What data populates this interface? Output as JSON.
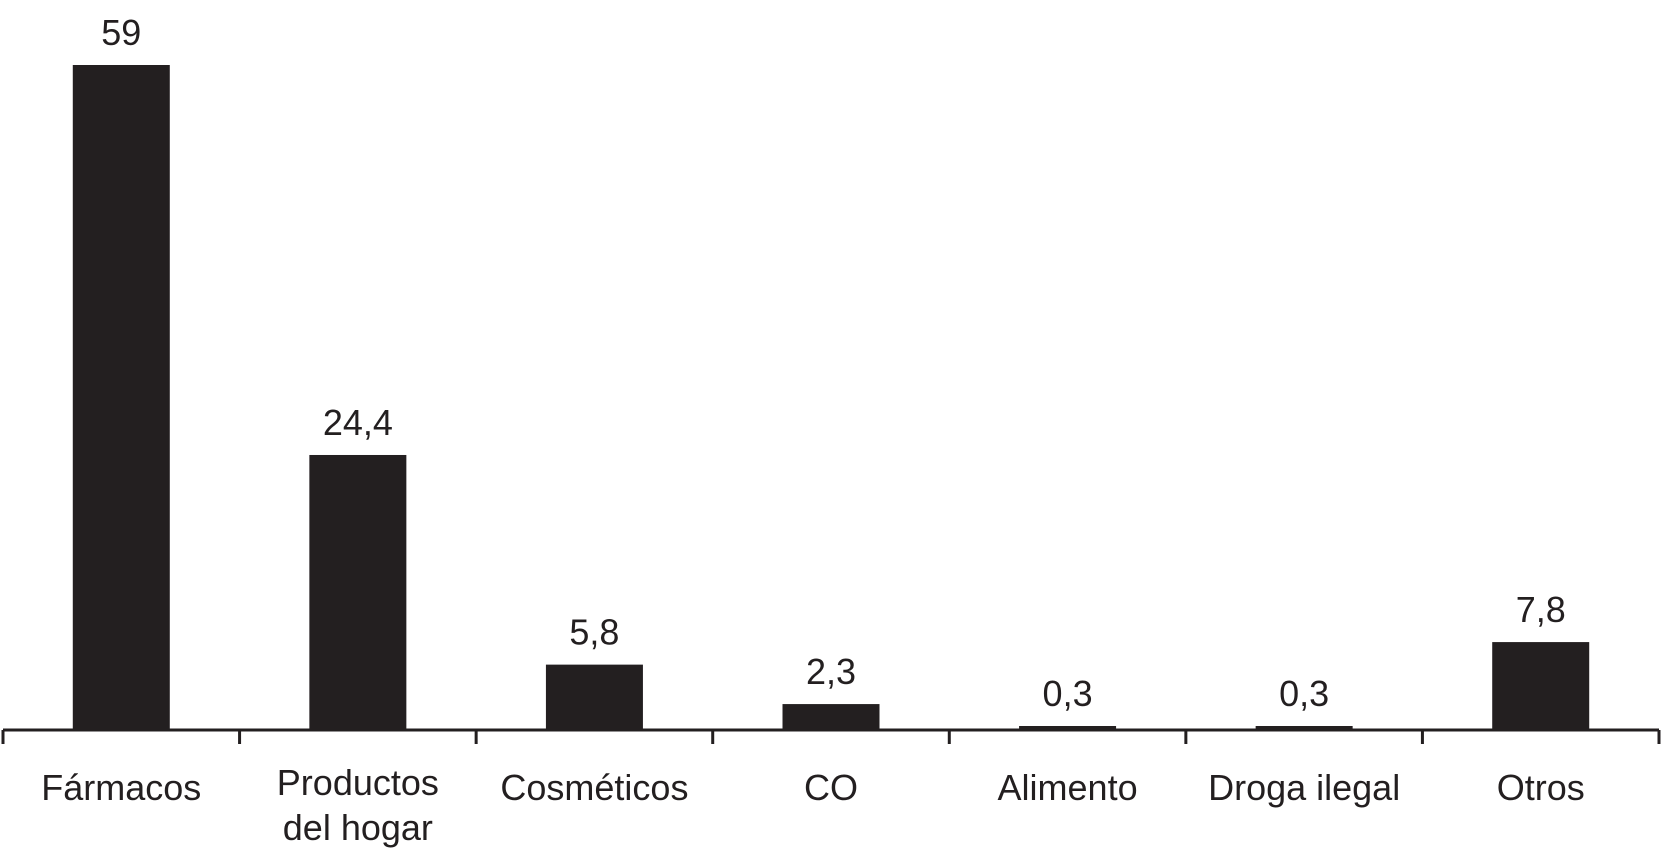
{
  "chart_data": {
    "type": "bar",
    "categories": [
      "Fármacos",
      "Productos del hogar",
      "Cosméticos",
      "CO",
      "Alimento",
      "Droga ilegal",
      "Otros"
    ],
    "category_lines": [
      [
        "Fármacos"
      ],
      [
        "Productos",
        "del hogar"
      ],
      [
        "Cosméticos"
      ],
      [
        "CO"
      ],
      [
        "Alimento"
      ],
      [
        "Droga ilegal"
      ],
      [
        "Otros"
      ]
    ],
    "values": [
      59,
      24.4,
      5.8,
      2.3,
      0.3,
      0.3,
      7.8
    ],
    "data_labels": [
      "59",
      "24,4",
      "5,8",
      "2,3",
      "0,3",
      "0,3",
      "7,8"
    ],
    "title": "",
    "xlabel": "",
    "ylabel": "",
    "ylim": [
      0,
      59
    ],
    "grid": false,
    "bar_color": "#231f20"
  }
}
